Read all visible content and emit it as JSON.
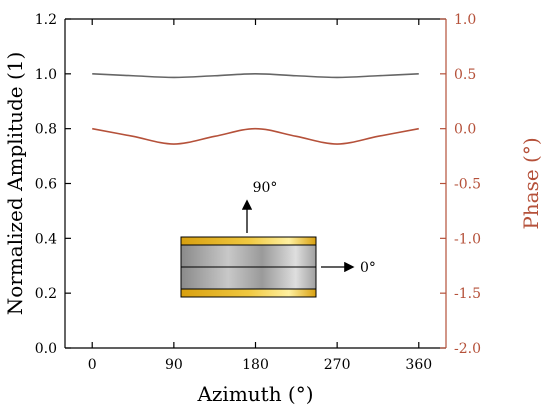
{
  "chart_data": {
    "type": "line",
    "xlabel": "Azimuth (°)",
    "ylabel_left": "Normalized Amplitude (1)",
    "ylabel_right": "Phase (°)",
    "x_ticks": [
      "0",
      "90",
      "180",
      "270",
      "360"
    ],
    "y_left_ticks": [
      "0.0",
      "0.2",
      "0.4",
      "0.6",
      "0.8",
      "1.0",
      "1.2"
    ],
    "y_right_ticks": [
      "-2.0",
      "-1.5",
      "-1.0",
      "-0.5",
      "0.0",
      "0.5",
      "1.0"
    ],
    "xlim": [
      -30,
      390
    ],
    "ylim_left": [
      0,
      1.2
    ],
    "ylim_right": [
      -2.0,
      1.0
    ],
    "grid": false,
    "series": [
      {
        "axis": "left",
        "color": "#666666",
        "x": [
          0,
          45,
          90,
          135,
          180,
          225,
          270,
          315,
          360
        ],
        "values": [
          1.0,
          0.993,
          0.987,
          0.993,
          1.0,
          0.993,
          0.987,
          0.993,
          1.0
        ]
      },
      {
        "axis": "right",
        "color": "#b5513a",
        "x": [
          0,
          45,
          90,
          135,
          180,
          225,
          270,
          315,
          360
        ],
        "values": [
          0.0,
          -0.07,
          -0.14,
          -0.07,
          0.0,
          -0.07,
          -0.14,
          -0.07,
          0.0
        ]
      }
    ],
    "colors": {
      "left_axis": "#000000",
      "right_axis": "#b5513a",
      "gold": "#e8b820",
      "gray_dark": "#7a7a7a",
      "gray_light": "#d4d4d4"
    },
    "annotations": {
      "up_label": "90°",
      "right_label": "0°"
    }
  }
}
